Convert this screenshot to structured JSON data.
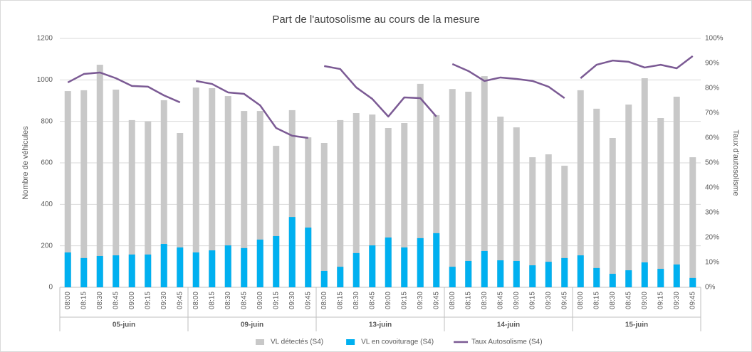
{
  "chart_data": {
    "type": "bar-line",
    "title": "Part de l'autosolisme au cours de la mesure",
    "y_label": "Nombre de véhicules",
    "y2_label": "Taux d'autosolisme",
    "groups": [
      {
        "label": "05-juin",
        "categories": [
          "08:00",
          "08:15",
          "08:30",
          "08:45",
          "09:00",
          "09:15",
          "09:30",
          "09:45"
        ]
      },
      {
        "label": "09-juin",
        "categories": [
          "08:00",
          "08:15",
          "08:30",
          "08:45",
          "09:00",
          "09:15",
          "09:30",
          "09:45"
        ]
      },
      {
        "label": "13-juin",
        "categories": [
          "08:00",
          "08:15",
          "08:30",
          "08:45",
          "09:00",
          "09:15",
          "09:30",
          "09:45"
        ]
      },
      {
        "label": "14-juin",
        "categories": [
          "08:00",
          "08:15",
          "08:30",
          "08:45",
          "09:00",
          "09:15",
          "09:30",
          "09:45"
        ]
      },
      {
        "label": "15-juin",
        "categories": [
          "08:00",
          "08:15",
          "08:30",
          "08:45",
          "09:00",
          "09:15",
          "09:30",
          "09:45"
        ]
      }
    ],
    "series": [
      {
        "name": "VL détectés (S4)",
        "type": "bar",
        "color": "#c8c8c8",
        "values": [
          946,
          950,
          1073,
          953,
          806,
          799,
          902,
          744,
          963,
          960,
          922,
          850,
          850,
          682,
          854,
          723,
          696,
          806,
          840,
          833,
          768,
          792,
          981,
          830,
          956,
          943,
          1018,
          823,
          771,
          627,
          641,
          586,
          950,
          861,
          720,
          881,
          1008,
          816,
          919,
          627
        ]
      },
      {
        "name": "VL en covoiturage (S4)",
        "type": "bar",
        "color": "#00b0f0",
        "values": [
          168,
          141,
          151,
          154,
          158,
          158,
          209,
          192,
          168,
          178,
          202,
          189,
          230,
          247,
          339,
          288,
          79,
          99,
          165,
          202,
          240,
          192,
          237,
          261,
          99,
          127,
          175,
          130,
          127,
          106,
          123,
          141,
          154,
          93,
          65,
          82,
          120,
          89,
          110,
          45
        ]
      },
      {
        "name": "Taux Autosolisme (S4)",
        "type": "line",
        "axis": "y2",
        "color": "#7b5a94",
        "values": [
          82.3,
          85.7,
          86.3,
          84,
          80.9,
          80.6,
          77.1,
          74.3,
          82.9,
          81.7,
          78.3,
          77.7,
          73.1,
          64,
          60.9,
          60,
          88.9,
          87.7,
          80.3,
          75.7,
          68.6,
          76.3,
          76,
          68.6,
          89.7,
          86.9,
          82.9,
          84.3,
          83.7,
          82.9,
          80.6,
          76,
          84,
          89.4,
          91.1,
          90.6,
          88.3,
          89.4,
          88,
          92.9
        ]
      }
    ],
    "ylim": [
      0,
      1200
    ],
    "yticks": [
      0,
      200,
      400,
      600,
      800,
      1000,
      1200
    ],
    "y2lim": [
      0,
      100
    ],
    "y2ticks": [
      {
        "value": 0,
        "label": "0%"
      },
      {
        "value": 10,
        "label": "10%"
      },
      {
        "value": 20,
        "label": "20%"
      },
      {
        "value": 30,
        "label": "30%"
      },
      {
        "value": 40,
        "label": "40%"
      },
      {
        "value": 50,
        "label": "50%"
      },
      {
        "value": 60,
        "label": "60%"
      },
      {
        "value": 70,
        "label": "70%"
      },
      {
        "value": 80,
        "label": "80%"
      },
      {
        "value": 90,
        "label": "90%"
      },
      {
        "value": 100,
        "label": "100%"
      }
    ],
    "grid": true,
    "legend": "bottom"
  }
}
